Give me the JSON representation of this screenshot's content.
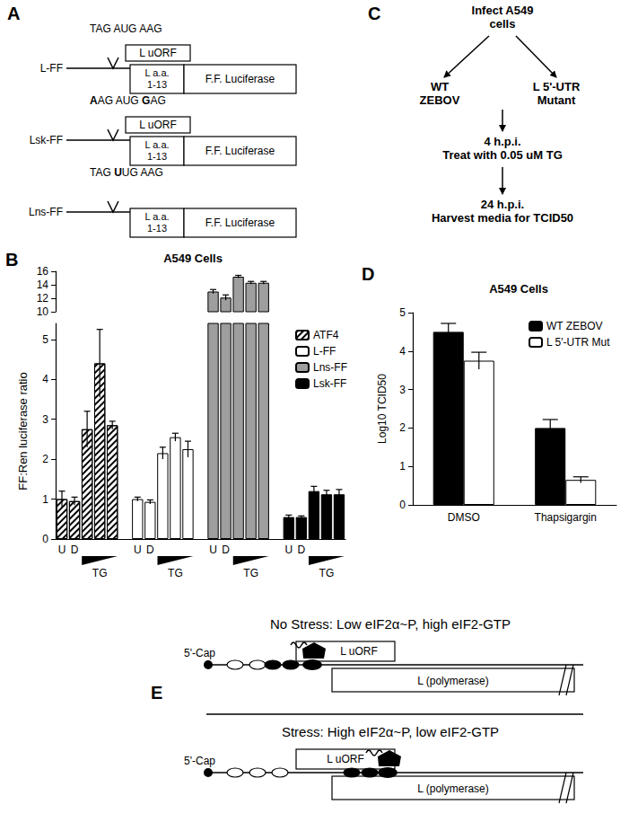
{
  "chart_data": [
    {
      "panel": "B",
      "type": "bar",
      "title": "A549 Cells",
      "y_label": "FF:Ren luciferase ratio",
      "categories": [
        "U",
        "D",
        null,
        null,
        null,
        null,
        "U",
        "D",
        null,
        null,
        null,
        null,
        "U",
        "D",
        null,
        null,
        null,
        null,
        "U",
        "D",
        null,
        null,
        null
      ],
      "sublabels": [
        null,
        null,
        null,
        "TG",
        null,
        null,
        null,
        null,
        null,
        "TG",
        null,
        null,
        null,
        null,
        null,
        "TG",
        null,
        null,
        null,
        null,
        null,
        "TG",
        null
      ],
      "series": [
        {
          "name": "ATF4",
          "color": "#ffffff",
          "marker": "hatch",
          "values": [
            1.0,
            0.95,
            2.75,
            4.4,
            2.85,
            null,
            null,
            null,
            null,
            null,
            null,
            null,
            null,
            null,
            null,
            null,
            null,
            null,
            null,
            null,
            null,
            null,
            null
          ],
          "errors": [
            0.2,
            0.1,
            0.45,
            0.85,
            0.1,
            null,
            null,
            null,
            null,
            null,
            null,
            null,
            null,
            null,
            null,
            null,
            null,
            null,
            null,
            null,
            null,
            null,
            null
          ]
        },
        {
          "name": "L-FF",
          "color": "#ffffff",
          "values": [
            null,
            null,
            null,
            null,
            null,
            null,
            1.0,
            0.93,
            2.15,
            2.55,
            2.25,
            null,
            null,
            null,
            null,
            null,
            null,
            null,
            null,
            null,
            null,
            null,
            null
          ],
          "errors": [
            null,
            null,
            null,
            null,
            null,
            null,
            0.05,
            0.05,
            0.15,
            0.1,
            0.2,
            null,
            null,
            null,
            null,
            null,
            null,
            null,
            null,
            null,
            null,
            null,
            null
          ]
        },
        {
          "name": "Lns-FF",
          "color": "#9e9e9e",
          "values": [
            null,
            null,
            null,
            null,
            null,
            null,
            null,
            null,
            null,
            null,
            null,
            null,
            13.0,
            12.1,
            15.2,
            14.3,
            14.3,
            null,
            null,
            null,
            null,
            null,
            null
          ],
          "errors": [
            null,
            null,
            null,
            null,
            null,
            null,
            null,
            null,
            null,
            null,
            null,
            null,
            0.3,
            0.4,
            0.2,
            0.2,
            0.2,
            null,
            null,
            null,
            null,
            null,
            null
          ]
        },
        {
          "name": "Lsk-FF",
          "color": "#000000",
          "values": [
            null,
            null,
            null,
            null,
            null,
            null,
            null,
            null,
            null,
            null,
            null,
            null,
            null,
            null,
            null,
            null,
            null,
            null,
            0.55,
            0.55,
            1.2,
            1.12,
            1.12
          ],
          "errors": [
            null,
            null,
            null,
            null,
            null,
            null,
            null,
            null,
            null,
            null,
            null,
            null,
            null,
            null,
            null,
            null,
            null,
            null,
            0.05,
            0.03,
            0.12,
            0.1,
            0.12
          ]
        }
      ],
      "ylim": [
        0,
        16
      ],
      "y_break": [
        5.4,
        10
      ],
      "yticks": [
        0,
        1,
        2,
        3,
        4,
        5,
        10,
        12,
        14,
        16
      ],
      "legend": "top-right",
      "grid": false
    },
    {
      "panel": "D",
      "type": "bar",
      "title": "A549 Cells",
      "y_label": "Log10 TCID50",
      "categories": [
        "DMSO",
        "Thapsigargin"
      ],
      "series": [
        {
          "name": "WT ZEBOV",
          "color": "#000000",
          "values": [
            4.5,
            2.0
          ],
          "errors": [
            0.22,
            0.22
          ]
        },
        {
          "name": "L 5'-UTR Mut",
          "color": "#ffffff",
          "values": [
            3.75,
            0.65
          ],
          "errors": [
            0.22,
            0.08
          ]
        }
      ],
      "ylim": [
        0,
        5
      ],
      "yticks": [
        0,
        1,
        2,
        3,
        4,
        5
      ],
      "legend": "top-right",
      "grid": false
    }
  ],
  "diagrams": {
    "A": {
      "letter": "A",
      "constructs": [
        {
          "name": "L-FF",
          "context": [
            {
              "text": "TAG AUG AAG"
            }
          ],
          "uorf": "L uORF",
          "aa": [
            "L a.a.",
            "1-13"
          ],
          "reporter": "F.F. Luciferase"
        },
        {
          "name": "Lsk-FF",
          "context": [
            {
              "text": "A",
              "bold": true
            },
            {
              "text": "AG AUG "
            },
            {
              "text": "G",
              "bold": true
            },
            {
              "text": "AG"
            }
          ],
          "uorf": "L uORF",
          "aa": [
            "L a.a.",
            "1-13"
          ],
          "reporter": "F.F. Luciferase"
        },
        {
          "name": "Lns-FF",
          "context": [
            {
              "text": "TAG "
            },
            {
              "text": "U",
              "bold": true
            },
            {
              "text": "UG AAG"
            }
          ],
          "aa": [
            "L a.a.",
            "1-13"
          ],
          "reporter": "F.F. Luciferase"
        }
      ]
    },
    "C": {
      "letter": "C",
      "start": [
        "Infect A549",
        "cells"
      ],
      "branches": [
        [
          "WT",
          "ZEBOV"
        ],
        [
          "L 5'-UTR",
          "Mutant"
        ]
      ],
      "steps": [
        [
          "4 h.p.i.",
          "Treat with 0.05 uM TG"
        ],
        [
          "24 h.p.i.",
          "Harvest media for TCID50"
        ]
      ]
    },
    "E": {
      "letter": "E",
      "states": [
        {
          "caption": "No Stress: Low eIF2α~P, high eIF2-GTP",
          "cap": "5'-Cap",
          "uorf": "L uORF",
          "orf": "L (polymerase)"
        },
        {
          "caption": "Stress: High eIF2α~P, low eIF2-GTP",
          "cap": "5'-Cap",
          "uorf": "L uORF",
          "orf": "L (polymerase)"
        }
      ]
    }
  }
}
